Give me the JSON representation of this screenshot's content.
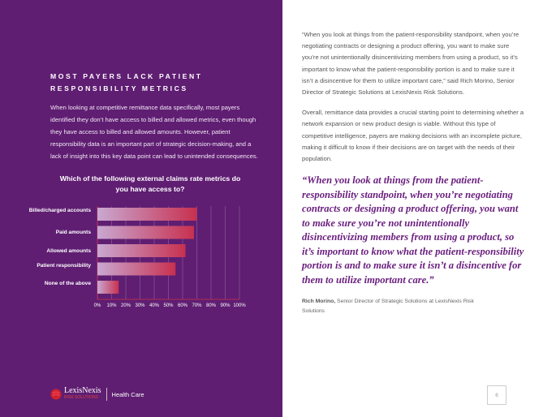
{
  "left": {
    "heading": "MOST PAYERS LACK PATIENT RESPONSIBILITY METRICS",
    "body": "When looking at competitive remittance data specifically, most payers identified they don’t have access to billed and allowed metrics, even though they have access to billed and allowed amounts. However, patient responsibility data is an important part of strategic decision-making, and a lack of insight into this key data point can lead to unintended consequences."
  },
  "chart_data": {
    "type": "bar",
    "orientation": "horizontal",
    "title": "Which of the following external claims rate metrics do you have access to?",
    "categories": [
      "Billed/charged accounts",
      "Paid amounts",
      "Allowed amounts",
      "Patient responsibility",
      "None of the above"
    ],
    "values": [
      70,
      68,
      62,
      55,
      15
    ],
    "xlim": [
      0,
      100
    ],
    "xticks": [
      "0%",
      "10%",
      "20%",
      "30%",
      "40%",
      "50%",
      "60%",
      "70%",
      "80%",
      "90%",
      "100%"
    ],
    "grid": true
  },
  "footer": {
    "brand": "LexisNexis",
    "brand_sub": "RISK SOLUTIONS",
    "division": "Health Care",
    "page": "6"
  },
  "right": {
    "p1": "“When you look at things from the patient-responsibility standpoint, when you’re negotiating contracts or designing a product offering, you want to make sure you’re not unintentionally disincentivizing members from using a product, so it’s important to know what the patient-responsibility portion is and to make sure it isn’t a disincentive for them to utilize important care,” said Rich Morino, Senior Director of Strategic Solutions at LexisNexis Risk Solutions.",
    "p2": "Overall, remittance data provides a crucial starting point to determining whether a network expansion or new product design is viable. Without this type of competitive intelligence, payers are making decisions with an incomplete picture, making it difficult to know if their decisions are on target with the needs of their population.",
    "quote": "“When you look at things from the patient-responsibility standpoint, when you’re negotiating contracts or designing a product offering, you want to make sure you’re not unintentionally disincentivizing members from using a product, so it’s important to know what the patient-responsibility portion is and to make sure it isn’t a disincentive for them to utilize important care.”",
    "attrib_name": "Rich Morino,",
    "attrib_title": " Senior Director of Strategic Solutions at LexisNexis Risk Solutions"
  },
  "colors": {
    "panel": "#5f1e72",
    "quote": "#6a1e7e",
    "bar_end": "#c8304f"
  }
}
